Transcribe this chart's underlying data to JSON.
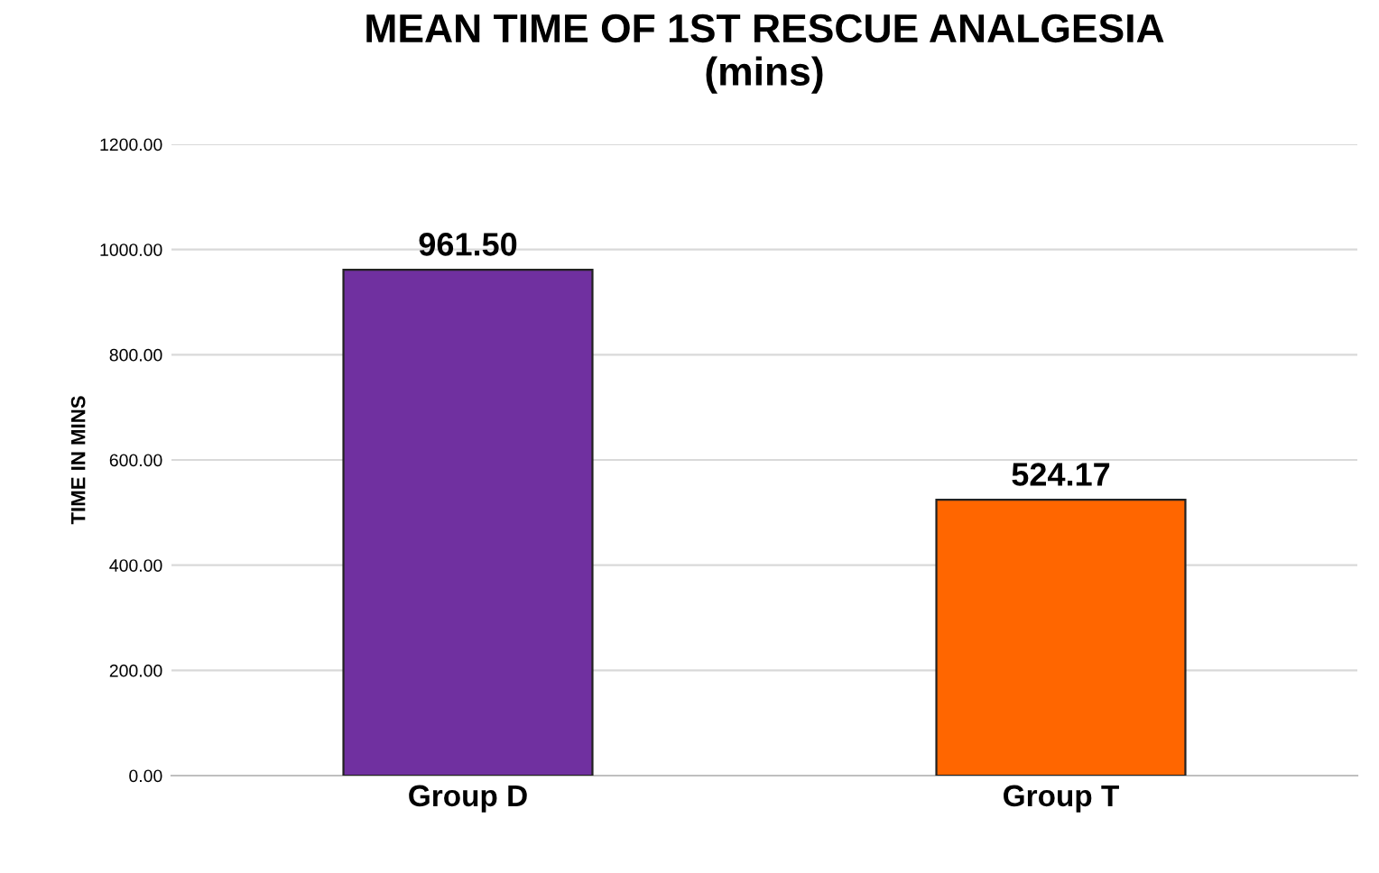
{
  "chart_data": {
    "type": "bar",
    "title": "MEAN TIME OF 1ST RESCUE ANALGESIA\n(mins)",
    "ylabel": "TIME IN MINS",
    "categories": [
      "Group D",
      "Group T"
    ],
    "values": [
      961.5,
      524.17
    ],
    "colors": [
      "#7030a0",
      "#ff6600"
    ],
    "value_labels": [
      "961.50",
      "524.17"
    ],
    "ylim": [
      0,
      1200
    ],
    "yticks": [
      {
        "value": 0,
        "label": "0.00"
      },
      {
        "value": 200,
        "label": "200.00"
      },
      {
        "value": 400,
        "label": "400.00"
      },
      {
        "value": 600,
        "label": "600.00"
      },
      {
        "value": 800,
        "label": "800.00"
      },
      {
        "value": 1000,
        "label": "1000.00"
      },
      {
        "value": 1200,
        "label": "1200.00"
      }
    ],
    "grid": "y",
    "legend": false
  }
}
